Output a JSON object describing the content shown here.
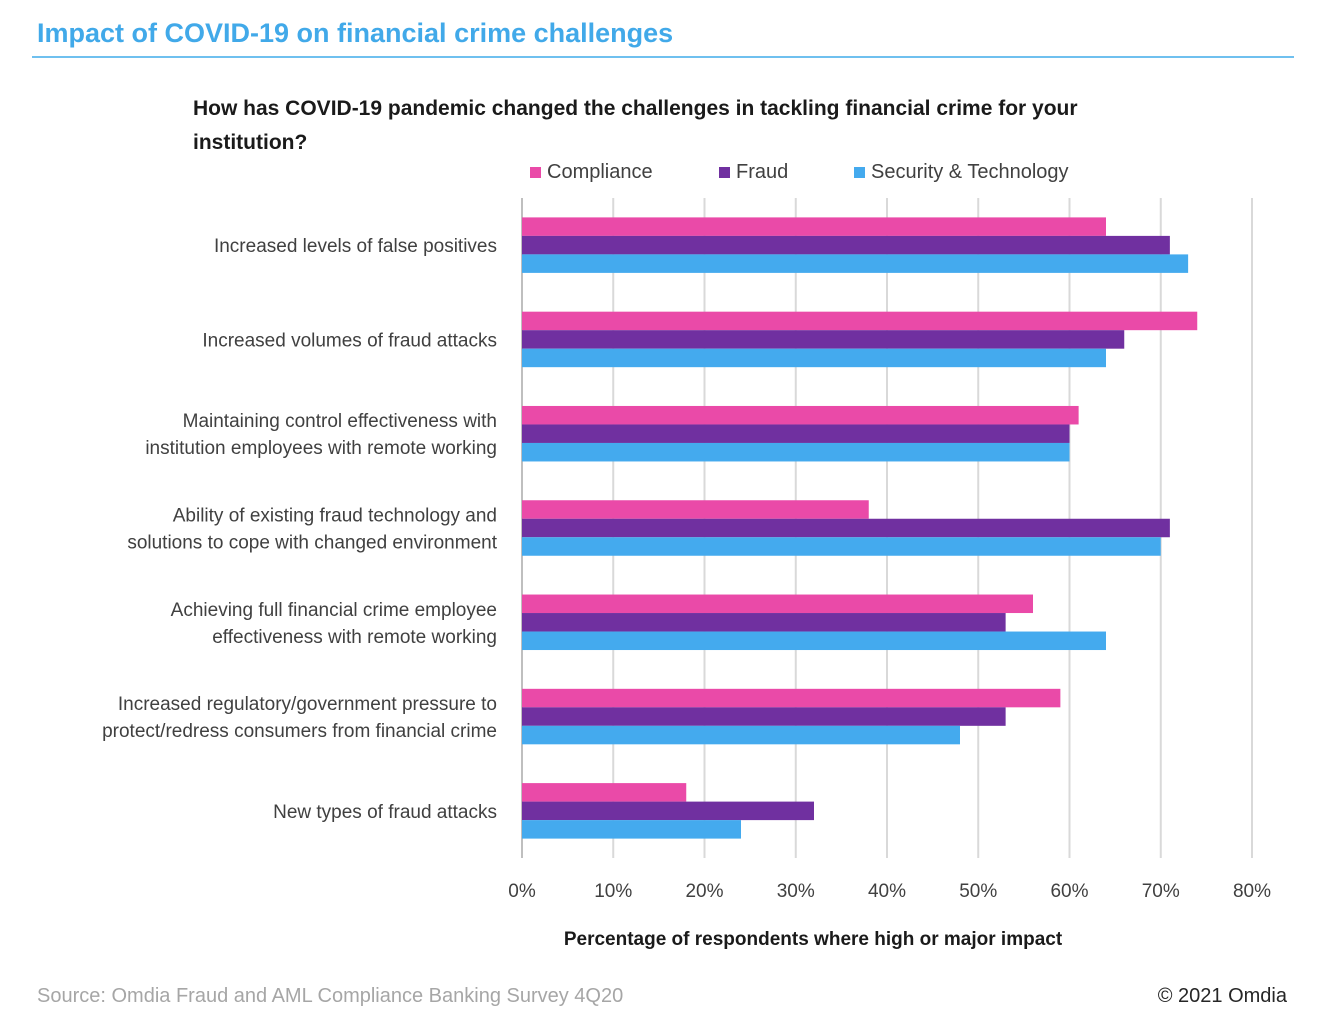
{
  "header": {
    "title": "Impact of COVID-19 on financial crime challenges"
  },
  "footer": {
    "source": "Source: Omdia Fraud and AML Compliance Banking Survey 4Q20",
    "copyright": "© 2021 Omdia"
  },
  "colors": {
    "compliance": "#ea4aa8",
    "fraud": "#7030a0",
    "security": "#44aaee",
    "accent": "#41a9e9",
    "grid": "#d9d9d9"
  },
  "chart_data": {
    "type": "bar",
    "orientation": "horizontal",
    "title": "How has COVID-19 pandemic changed the challenges in tackling financial crime for your institution?",
    "xlabel": "Percentage of respondents where high or major impact",
    "ylabel": "",
    "xlim": [
      0,
      80
    ],
    "xticks": [
      "0%",
      "10%",
      "20%",
      "30%",
      "40%",
      "50%",
      "60%",
      "70%",
      "80%"
    ],
    "grid": true,
    "legend_position": "top",
    "categories": [
      [
        "Increased levels of false positives"
      ],
      [
        "Increased volumes of fraud attacks"
      ],
      [
        "Maintaining control effectiveness with",
        "institution employees with remote working"
      ],
      [
        "Ability of existing fraud technology and",
        "solutions to cope with changed environment"
      ],
      [
        "Achieving full financial crime employee",
        "effectiveness with remote working"
      ],
      [
        "Increased regulatory/government pressure to",
        "protect/redress consumers from financial crime"
      ],
      [
        "New types of fraud attacks"
      ]
    ],
    "series": [
      {
        "name": "Compliance",
        "values": [
          64,
          74,
          61,
          38,
          56,
          59,
          18
        ]
      },
      {
        "name": "Fraud",
        "values": [
          71,
          66,
          60,
          71,
          53,
          53,
          32
        ]
      },
      {
        "name": "Security & Technology",
        "values": [
          73,
          64,
          60,
          70,
          64,
          48,
          24
        ]
      }
    ]
  }
}
